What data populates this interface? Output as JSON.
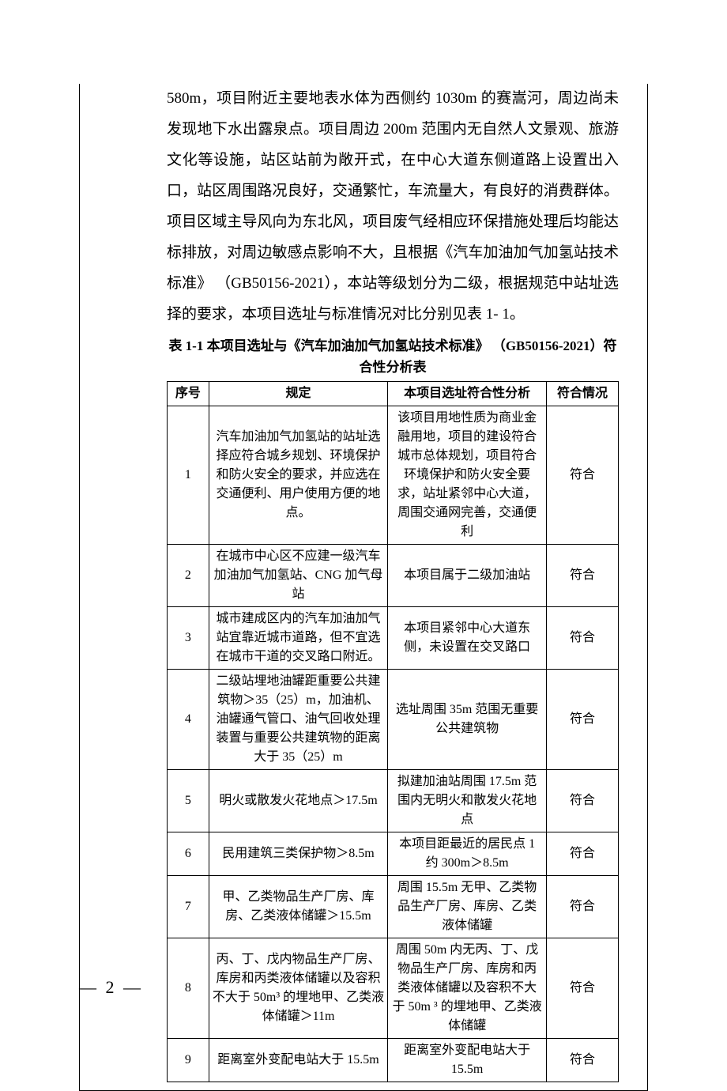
{
  "body_text": "580m，项目附近主要地表水体为西侧约 1030m 的赛嵩河，周边尚未发现地下水出露泉点。项目周边 200m 范围内无自然人文景观、旅游文化等设施，站区站前为敞开式，在中心大道东侧道路上设置出入口，站区周围路况良好，交通繁忙，车流量大，有良好的消费群体。项目区域主导风向为东北风，项目废气经相应环保措施处理后均能达标排放，对周边敏感点影响不大，且根据《汽车加油加气加氢站技术标准》 （GB50156-2021），本站等级划分为二级，根据规范中站址选择的要求，本项目选址与标准情况对比分别见表 1- 1。",
  "table_title": "表 1-1 本项目选址与《汽车加油加气加氢站技术标准》 （GB50156-2021）符合性分析表",
  "headers": {
    "seq": "序号",
    "rule": "规定",
    "analysis": "本项目选址符合性分析",
    "result": "符合情况"
  },
  "rows": [
    {
      "seq": "1",
      "rule": "汽车加油加气加氢站的站址选择应符合城乡规划、环境保护和防火安全的要求，并应选在交通便利、用户使用方便的地点。",
      "analysis": "该项目用地性质为商业金融用地，项目的建设符合城市总体规划，项目符合环境保护和防火安全要求，站址紧邻中心大道，周围交通网完善，交通便利",
      "result": "符合"
    },
    {
      "seq": "2",
      "rule": "在城市中心区不应建一级汽车加油加气加氢站、CNG 加气母站",
      "analysis": "本项目属于二级加油站",
      "result": "符合"
    },
    {
      "seq": "3",
      "rule": "城市建成区内的汽车加油加气站宜靠近城市道路，但不宜选在城市干道的交叉路口附近。",
      "analysis": "本项目紧邻中心大道东侧，未设置在交叉路口",
      "result": "符合"
    },
    {
      "seq": "4",
      "rule": "二级站埋地油罐距重要公共建筑物＞35（25）m，加油机、油罐通气管口、油气回收处理装置与重要公共建筑物的距离大于 35（25）m",
      "analysis": "选址周围 35m 范围无重要公共建筑物",
      "result": "符合"
    },
    {
      "seq": "5",
      "rule": "明火或散发火花地点＞17.5m",
      "analysis": "拟建加油站周围 17.5m 范围内无明火和散发火花地点",
      "result": "符合"
    },
    {
      "seq": "6",
      "rule": "民用建筑三类保护物＞8.5m",
      "analysis": "本项目距最近的居民点 1 约 300m＞8.5m",
      "result": "符合"
    },
    {
      "seq": "7",
      "rule": "甲、乙类物品生产厂房、库房、乙类液体储罐＞15.5m",
      "analysis": "周围 15.5m 无甲、乙类物品生产厂房、库房、乙类液体储罐",
      "result": "符合"
    },
    {
      "seq": "8",
      "rule": "丙、丁、戊内物品生产厂房、库房和丙类液体储罐以及容积不大于 50m³ 的埋地甲、乙类液体储罐＞11m",
      "analysis": "周围 50m 内无丙、丁、戊物品生产厂房、库房和丙类液体储罐以及容积不大于 50m ³ 的埋地甲、乙类液体储罐",
      "result": "符合"
    },
    {
      "seq": "9",
      "rule": "距离室外变配电站大于 15.5m",
      "analysis": "距离室外变配电站大于 15.5m",
      "result": "符合"
    }
  ],
  "page_number": "— 2 —"
}
